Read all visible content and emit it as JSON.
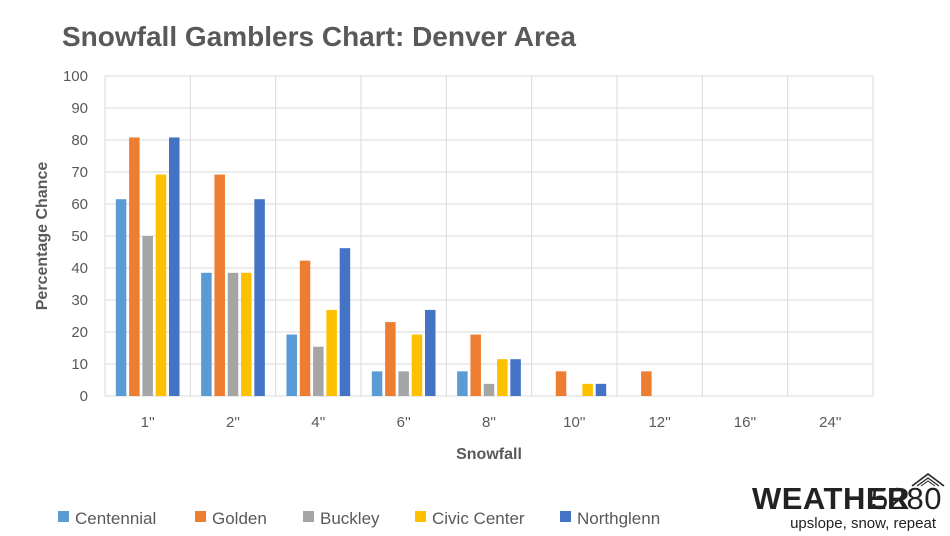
{
  "chart_data": {
    "type": "bar",
    "title": "Snowfall Gamblers Chart: Denver Area",
    "xlabel": "Snowfall",
    "ylabel": "Percentage Chance",
    "ylim": [
      0,
      100
    ],
    "yticks": [
      0,
      10,
      20,
      30,
      40,
      50,
      60,
      70,
      80,
      90,
      100
    ],
    "grid": true,
    "legend_position": "bottom",
    "categories": [
      "1''",
      "2''",
      "4''",
      "6''",
      "8''",
      "10''",
      "12''",
      "16''",
      "24''"
    ],
    "series": [
      {
        "name": "Centennial",
        "color": "#5B9BD5",
        "values": [
          61.5,
          38.5,
          19.2,
          7.7,
          7.7,
          0,
          0,
          0,
          0
        ]
      },
      {
        "name": "Golden",
        "color": "#ED7D31",
        "values": [
          80.8,
          69.2,
          42.3,
          23.1,
          19.2,
          7.7,
          7.7,
          0,
          0
        ]
      },
      {
        "name": "Buckley",
        "color": "#A5A5A5",
        "values": [
          50,
          38.5,
          15.4,
          7.7,
          3.8,
          0,
          0,
          0,
          0
        ]
      },
      {
        "name": "Civic Center",
        "color": "#FFC000",
        "values": [
          69.2,
          38.5,
          26.9,
          19.2,
          11.5,
          3.8,
          0,
          0,
          0
        ]
      },
      {
        "name": "Northglenn",
        "color": "#4472C4",
        "values": [
          80.8,
          61.5,
          46.2,
          26.9,
          11.5,
          3.8,
          0,
          0,
          0
        ]
      }
    ]
  },
  "branding": {
    "name": "WEATHER",
    "number": "5280",
    "tagline": "upslope, snow, repeat",
    "color": "#222222"
  }
}
